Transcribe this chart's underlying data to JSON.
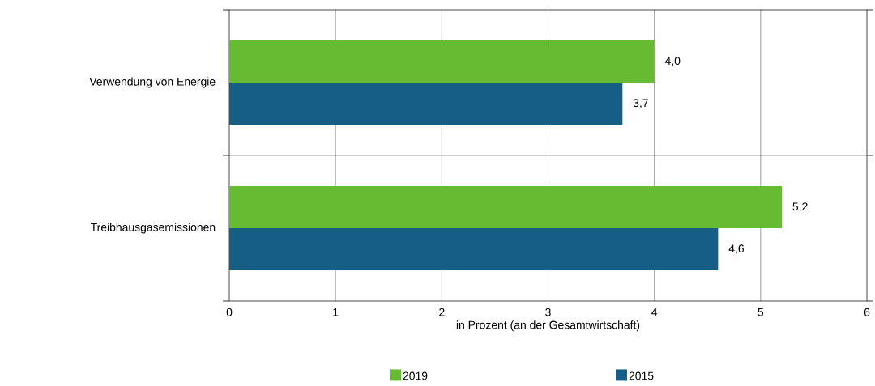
{
  "chart_data": {
    "type": "bar",
    "orientation": "horizontal",
    "categories": [
      "Verwendung von Energie",
      "Treibhausgasemissionen"
    ],
    "series": [
      {
        "name": "2019",
        "color": "#66bb33",
        "values": [
          4.0,
          5.2
        ],
        "value_labels": [
          "4,0",
          "5,2"
        ]
      },
      {
        "name": "2015",
        "color": "#175e86",
        "values": [
          3.7,
          4.6
        ],
        "value_labels": [
          "3,7",
          "4,6"
        ]
      }
    ],
    "xlim": [
      0,
      6
    ],
    "xticks": [
      0,
      1,
      2,
      3,
      4,
      5,
      6
    ],
    "xlabel": "in Prozent (an der Gesamtwirtschaft)",
    "grid": "x",
    "legend": "bottom"
  }
}
